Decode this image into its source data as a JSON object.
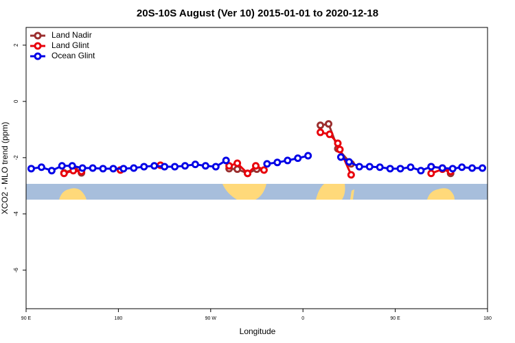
{
  "chart_data": {
    "type": "line",
    "title": "20S-10S August (Ver 10)   2015-01-01 to 2020-12-18",
    "x_label": "Longitude",
    "y_label": "XCO2 - MLO trend (ppm)",
    "xlim": [
      90,
      540
    ],
    "ylim": [
      -7.37,
      2.63
    ],
    "xticks": [
      {
        "value": 90,
        "label": "90 E"
      },
      180,
      {
        "value": 270,
        "label": "90 W"
      },
      {
        "value": 360,
        "label": "0"
      },
      {
        "value": 450,
        "label": "90 E"
      },
      {
        "value": 540,
        "label": "180"
      }
    ],
    "yticks": [
      2,
      0,
      -2,
      -4,
      -6
    ],
    "legend": "top-left",
    "series": [
      {
        "name": "Land Nadir",
        "color": "#9b2f2f",
        "x": [
          127,
          137,
          144,
          200,
          288,
          296,
          306,
          315,
          340,
          377,
          385,
          394,
          407,
          450,
          485,
          496,
          504
        ],
        "values": [
          -2.54,
          -2.41,
          -2.54,
          null,
          -2.39,
          -2.41,
          -2.56,
          -2.41,
          null,
          -0.85,
          -0.8,
          -1.68,
          -2.22,
          null,
          -2.32,
          -2.37,
          -2.56
        ]
      },
      {
        "name": "Land Glint",
        "color": "#e8000b",
        "x": [
          127,
          136,
          144,
          160,
          182,
          200,
          221,
          250,
          288,
          296,
          306,
          314,
          322,
          350,
          377,
          386,
          394,
          396,
          407,
          450,
          485,
          496,
          504
        ],
        "values": [
          -2.56,
          -2.46,
          -2.49,
          null,
          -2.44,
          null,
          -2.27,
          null,
          -2.29,
          -2.2,
          -2.56,
          -2.29,
          -2.44,
          null,
          -1.1,
          -1.17,
          -1.49,
          -1.71,
          -2.61,
          null,
          -2.56,
          -2.41,
          -2.49
        ]
      },
      {
        "name": "Ocean Glint",
        "color": "#0000e6",
        "x": [
          95,
          105,
          115,
          125,
          135,
          145,
          155,
          165,
          175,
          185,
          195,
          205,
          215,
          225,
          235,
          245,
          255,
          265,
          275,
          285,
          305,
          325,
          335,
          345,
          355,
          365,
          380,
          397,
          405,
          415,
          425,
          435,
          445,
          455,
          465,
          475,
          485,
          496,
          506,
          515,
          525,
          535
        ],
        "values": [
          -2.39,
          -2.34,
          -2.46,
          -2.29,
          -2.29,
          -2.37,
          -2.37,
          -2.39,
          -2.39,
          -2.39,
          -2.37,
          -2.32,
          -2.29,
          -2.32,
          -2.32,
          -2.29,
          -2.24,
          -2.29,
          -2.32,
          -2.1,
          null,
          -2.22,
          -2.17,
          -2.1,
          -2.02,
          -1.93,
          null,
          -1.98,
          -2.15,
          -2.32,
          -2.32,
          -2.34,
          -2.39,
          -2.39,
          -2.34,
          -2.46,
          -2.32,
          -2.37,
          -2.39,
          -2.34,
          -2.37,
          -2.37
        ]
      }
    ]
  }
}
